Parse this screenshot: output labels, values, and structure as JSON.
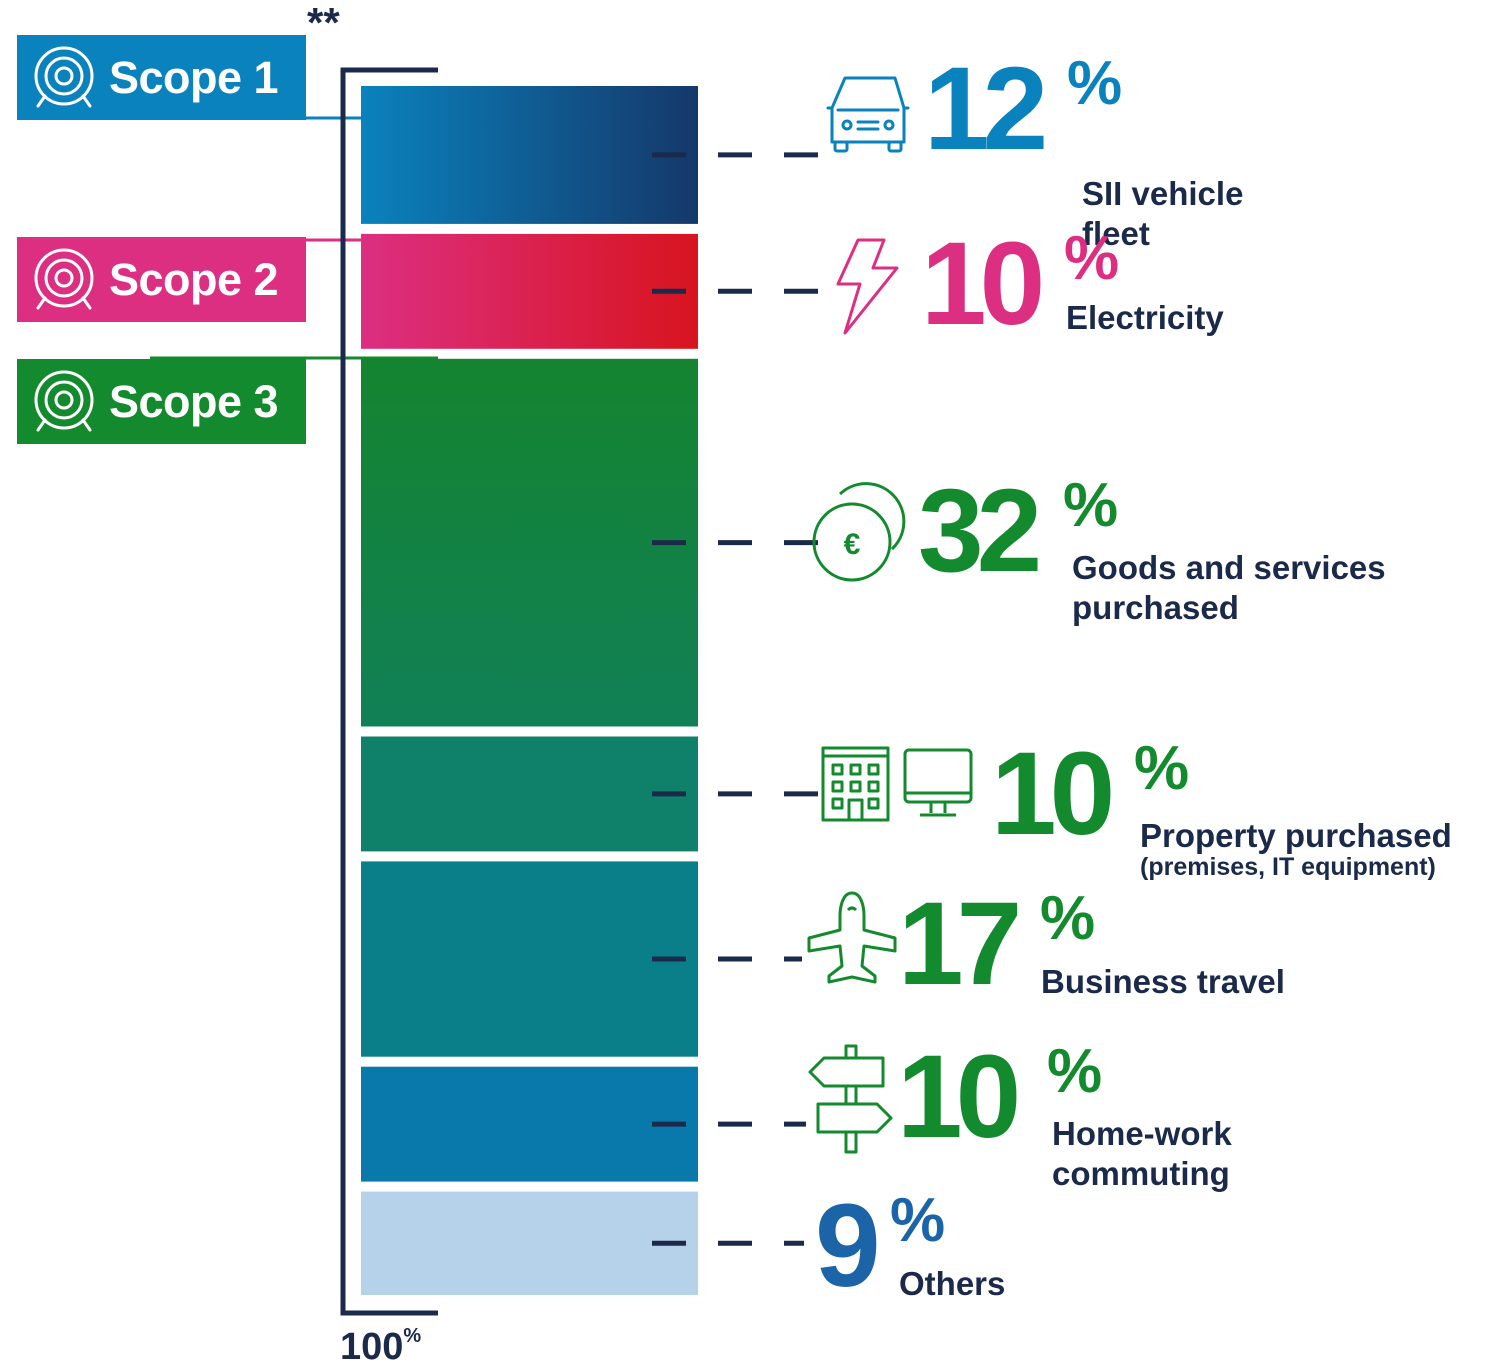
{
  "scopes": [
    {
      "label": "Scope 1",
      "color": "#0a82bd",
      "icon": "target-icon"
    },
    {
      "label": "Scope 2",
      "color": "#dc2f82",
      "icon": "target-icon"
    },
    {
      "label": "Scope 3",
      "color": "#148a2e",
      "icon": "target-icon"
    }
  ],
  "footnote_marker": "**",
  "total": {
    "value": "100",
    "unit": "%"
  },
  "chart_data": {
    "type": "bar",
    "orientation": "stacked-vertical",
    "unit": "%",
    "total": 100,
    "segments": [
      {
        "value": 12,
        "label": "SII vehicle fleet",
        "scope": "Scope 1",
        "icon": "car-icon",
        "value_color": "#0a82bd"
      },
      {
        "value": 10,
        "label": "Electricity",
        "scope": "Scope 2",
        "icon": "lightning-icon",
        "value_color": "#dc2f82"
      },
      {
        "value": 32,
        "label": "Goods and services purchased",
        "scope": "Scope 3",
        "icon": "euro-coins-icon",
        "value_color": "#148a2e"
      },
      {
        "value": 10,
        "label": "Property purchased",
        "sublabel": "(premises, IT equipment)",
        "scope": "Scope 3",
        "icon": "building-and-monitor-icon",
        "value_color": "#148a2e"
      },
      {
        "value": 17,
        "label": "Business travel",
        "scope": "Scope 3",
        "icon": "airplane-icon",
        "value_color": "#148a2e"
      },
      {
        "value": 10,
        "label": "Home-work commuting",
        "scope": "Scope 3",
        "icon": "signpost-icon",
        "value_color": "#148a2e"
      },
      {
        "value": 9,
        "label": "Others",
        "scope": "",
        "icon": "",
        "value_color": "#1b64a8"
      }
    ]
  }
}
